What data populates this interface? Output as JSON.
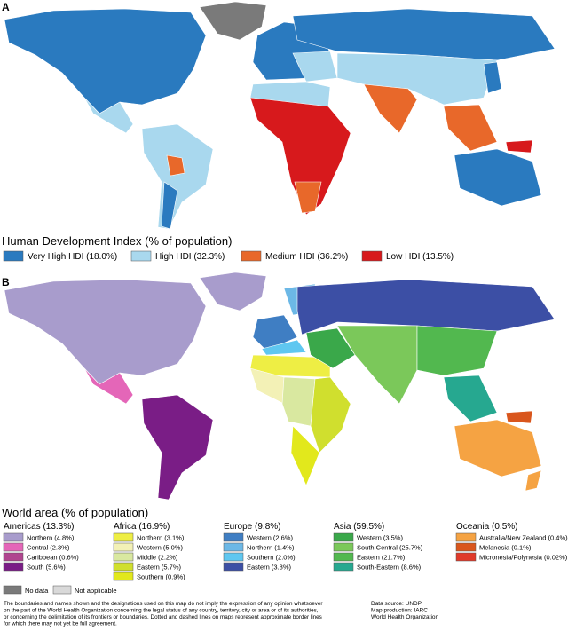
{
  "panel_a": {
    "letter": "A",
    "legend_title": "Human Development Index (% of population)",
    "items": [
      {
        "label": "Very High HDI (18.0%)",
        "color": "#2a7abf"
      },
      {
        "label": "High HDI (32.3%)",
        "color": "#a9d8ee"
      },
      {
        "label": "Medium HDI (36.2%)",
        "color": "#e8682a"
      },
      {
        "label": "Low HDI (13.5%)",
        "color": "#d7191c"
      }
    ]
  },
  "panel_b": {
    "letter": "B",
    "legend_title": "World area (% of population)",
    "groups": [
      {
        "title": "Americas (13.3%)",
        "items": [
          {
            "label": "Northern (4.8%)",
            "color": "#a89ccc"
          },
          {
            "label": "Central (2.3%)",
            "color": "#e466b8"
          },
          {
            "label": "Caribbean (0.6%)",
            "color": "#b0458f"
          },
          {
            "label": "South (5.6%)",
            "color": "#7a1d86"
          }
        ]
      },
      {
        "title": "Africa (16.9%)",
        "items": [
          {
            "label": "Northern (3.1%)",
            "color": "#eeee44"
          },
          {
            "label": "Western (5.0%)",
            "color": "#f3f1b6"
          },
          {
            "label": "Middle (2.2%)",
            "color": "#d9e8a0"
          },
          {
            "label": "Eastern (5.7%)",
            "color": "#d0df2e"
          },
          {
            "label": "Southern (0.9%)",
            "color": "#e2e81c"
          }
        ]
      },
      {
        "title": "Europe (9.8%)",
        "items": [
          {
            "label": "Western (2.6%)",
            "color": "#3f7ec3"
          },
          {
            "label": "Northern (1.4%)",
            "color": "#6cb8e6"
          },
          {
            "label": "Southern (2.0%)",
            "color": "#5fc7f0"
          },
          {
            "label": "Eastern (3.8%)",
            "color": "#3c4fa5"
          }
        ]
      },
      {
        "title": "Asia (59.5%)",
        "items": [
          {
            "label": "Western (3.5%)",
            "color": "#3aa84a"
          },
          {
            "label": "South Central (25.7%)",
            "color": "#7bc85a"
          },
          {
            "label": "Eastern (21.7%)",
            "color": "#52b84f"
          },
          {
            "label": "South-Eastern (8.6%)",
            "color": "#26a890"
          }
        ]
      },
      {
        "title": "Oceania (0.5%)",
        "items": [
          {
            "label": "Australia/New Zealand (0.4%)",
            "color": "#f5a343"
          },
          {
            "label": "Melanesia (0.1%)",
            "color": "#d9561d"
          },
          {
            "label": "Micronesia/Polynesia (0.02%)",
            "color": "#e03a2a"
          }
        ]
      }
    ]
  },
  "other_keys": [
    {
      "label": "No data",
      "color": "#7a7a7a"
    },
    {
      "label": "Not applicable",
      "color": "#d9d9d9"
    }
  ],
  "disclaimer": [
    "The boundaries and names shown and the designations used on this map do not imply the expression of any opinion whatsoever",
    "on the part of the World Health Organization concerning the legal status of any country, territory, city or area or of its authorities,",
    "or concerning the delimitation of its frontiers or boundaries. Dotted and dashed lines on maps represent approximate border lines",
    "for which there may not yet be full agreement."
  ],
  "credits": [
    "Data source: UNDP",
    "Map production: IARC",
    "World Health Organization"
  ]
}
